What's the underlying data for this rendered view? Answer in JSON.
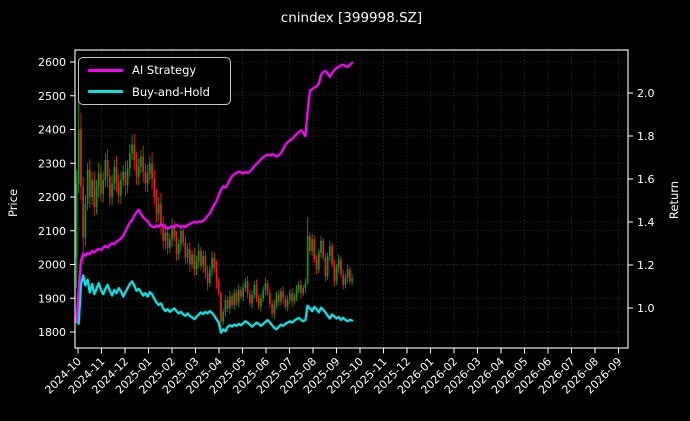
{
  "title": "cnindex [399998.SZ]",
  "left_axis_label": "Price",
  "right_axis_label": "Return",
  "legend": [
    {
      "label": "AI Strategy",
      "color": "#fb00fb"
    },
    {
      "label": "Buy-and-Hold",
      "color": "#00e6e6"
    }
  ],
  "chart_data": {
    "type": "candlestick+line",
    "title": "cnindex [399998.SZ]",
    "xlabel": "",
    "left_axis": {
      "label": "Price",
      "ticks": [
        1800,
        1900,
        2000,
        2100,
        2200,
        2300,
        2400,
        2500,
        2600
      ],
      "range": [
        1753,
        2635
      ],
      "grid": true
    },
    "right_axis": {
      "label": "Return",
      "ticks": [
        1.0,
        1.2,
        1.4,
        1.6,
        1.8,
        2.0
      ],
      "range": [
        0.81,
        2.2
      ],
      "grid": true
    },
    "x_tick_labels": [
      "2024-10",
      "2024-11",
      "2024-12",
      "2025-01",
      "2025-02",
      "2025-03",
      "2025-04",
      "2025-05",
      "2025-06",
      "2025-07",
      "2025-08",
      "2025-09",
      "2025-10",
      "2025-11",
      "2025-12",
      "2026-01",
      "2026-02",
      "2026-03",
      "2026-04",
      "2026-05",
      "2026-06",
      "2026-07",
      "2026-08",
      "2026-09"
    ],
    "x_tick_rotation_deg": 45,
    "data_start_label": "2024-10",
    "data_end_label": "2025-10",
    "legend_position": "upper left",
    "colors": {
      "up": "#00a020",
      "down": "#f01c1c",
      "ai_strategy": "#fb00fb",
      "buy_and_hold": "#00e6e6",
      "grid": "#3d3d3d",
      "background": "#000000",
      "foreground": "#ffffff"
    },
    "series": {
      "candles_ohlc": [
        [
          2020,
          2280,
          1930,
          2240
        ],
        [
          2240,
          2600,
          2210,
          2400
        ],
        [
          2400,
          2450,
          2190,
          2230
        ],
        [
          2230,
          2260,
          2000,
          2080
        ],
        [
          2080,
          2206,
          2054,
          2180
        ],
        [
          2180,
          2300,
          2160,
          2280
        ],
        [
          2280,
          2312,
          2168,
          2200
        ],
        [
          2200,
          2274,
          2176,
          2250
        ],
        [
          2250,
          2276,
          2144,
          2170
        ],
        [
          2170,
          2250,
          2150,
          2230
        ],
        [
          2230,
          2302,
          2198,
          2270
        ],
        [
          2270,
          2294,
          2186,
          2210
        ],
        [
          2210,
          2276,
          2184,
          2250
        ],
        [
          2250,
          2330,
          2230,
          2310
        ],
        [
          2310,
          2342,
          2228,
          2260
        ],
        [
          2260,
          2284,
          2176,
          2200
        ],
        [
          2200,
          2266,
          2174,
          2240
        ],
        [
          2240,
          2310,
          2220,
          2290
        ],
        [
          2290,
          2322,
          2213,
          2245
        ],
        [
          2245,
          2269,
          2181,
          2205
        ],
        [
          2205,
          2276,
          2179,
          2250
        ],
        [
          2250,
          2295,
          2230,
          2275
        ],
        [
          2275,
          2307,
          2203,
          2235
        ],
        [
          2235,
          2309,
          2211,
          2285
        ],
        [
          2285,
          2356,
          2259,
          2330
        ],
        [
          2330,
          2385,
          2310,
          2355
        ],
        [
          2355,
          2387,
          2278,
          2310
        ],
        [
          2310,
          2334,
          2236,
          2260
        ],
        [
          2260,
          2316,
          2234,
          2290
        ],
        [
          2290,
          2340,
          2270,
          2320
        ],
        [
          2320,
          2352,
          2243,
          2275
        ],
        [
          2275,
          2299,
          2216,
          2240
        ],
        [
          2240,
          2296,
          2214,
          2270
        ],
        [
          2270,
          2320,
          2250,
          2300
        ],
        [
          2300,
          2332,
          2223,
          2255
        ],
        [
          2255,
          2279,
          2176,
          2200
        ],
        [
          2200,
          2226,
          2124,
          2150
        ],
        [
          2150,
          2200,
          2130,
          2180
        ],
        [
          2180,
          2212,
          2088,
          2120
        ],
        [
          2120,
          2144,
          2046,
          2070
        ],
        [
          2070,
          2121,
          2044,
          2095
        ],
        [
          2095,
          2115,
          2030,
          2050
        ],
        [
          2050,
          2091,
          2034,
          2075
        ],
        [
          2075,
          2137,
          2053,
          2115
        ],
        [
          2115,
          2127,
          2068,
          2080
        ],
        [
          2080,
          2099,
          2011,
          2030
        ],
        [
          2030,
          2076,
          2014,
          2060
        ],
        [
          2060,
          2122,
          2038,
          2100
        ],
        [
          2100,
          2112,
          2053,
          2065
        ],
        [
          2065,
          2084,
          2001,
          2020
        ],
        [
          2020,
          2061,
          2004,
          2045
        ],
        [
          2045,
          2067,
          1978,
          2000
        ],
        [
          2000,
          2042,
          1988,
          2030
        ],
        [
          2030,
          2049,
          1966,
          1985
        ],
        [
          1985,
          2026,
          1969,
          2010
        ],
        [
          2010,
          2062,
          1988,
          2040
        ],
        [
          2040,
          2052,
          1983,
          1995
        ],
        [
          1995,
          2044,
          1976,
          2025
        ],
        [
          2025,
          2041,
          1959,
          1975
        ],
        [
          1975,
          1997,
          1923,
          1945
        ],
        [
          1945,
          1997,
          1933,
          1985
        ],
        [
          1985,
          2039,
          1966,
          2020
        ],
        [
          2020,
          2036,
          1974,
          1990
        ],
        [
          1990,
          2012,
          1928,
          1950
        ],
        [
          1950,
          1961,
          1904,
          1915
        ],
        [
          1915,
          1920,
          1795,
          1830
        ],
        [
          1830,
          1869,
          1821,
          1860
        ],
        [
          1860,
          1909,
          1846,
          1895
        ],
        [
          1895,
          1906,
          1859,
          1870
        ],
        [
          1870,
          1921,
          1854,
          1905
        ],
        [
          1905,
          1914,
          1871,
          1880
        ],
        [
          1880,
          1929,
          1866,
          1915
        ],
        [
          1915,
          1926,
          1879,
          1890
        ],
        [
          1890,
          1941,
          1874,
          1925
        ],
        [
          1925,
          1934,
          1896,
          1905
        ],
        [
          1905,
          1944,
          1891,
          1930
        ],
        [
          1930,
          1961,
          1919,
          1950
        ],
        [
          1950,
          1966,
          1899,
          1915
        ],
        [
          1915,
          1924,
          1876,
          1885
        ],
        [
          1885,
          1924,
          1871,
          1910
        ],
        [
          1910,
          1951,
          1899,
          1940
        ],
        [
          1940,
          1956,
          1889,
          1905
        ],
        [
          1905,
          1914,
          1866,
          1875
        ],
        [
          1875,
          1914,
          1861,
          1900
        ],
        [
          1900,
          1936,
          1889,
          1925
        ],
        [
          1925,
          1961,
          1909,
          1945
        ],
        [
          1945,
          1954,
          1906,
          1915
        ],
        [
          1915,
          1929,
          1871,
          1885
        ],
        [
          1885,
          1896,
          1844,
          1855
        ],
        [
          1855,
          1896,
          1839,
          1880
        ],
        [
          1880,
          1919,
          1871,
          1910
        ],
        [
          1910,
          1924,
          1876,
          1890
        ],
        [
          1890,
          1931,
          1879,
          1920
        ],
        [
          1920,
          1936,
          1884,
          1900
        ],
        [
          1900,
          1909,
          1866,
          1875
        ],
        [
          1875,
          1909,
          1861,
          1895
        ],
        [
          1895,
          1926,
          1884,
          1915
        ],
        [
          1915,
          1931,
          1874,
          1890
        ],
        [
          1890,
          1914,
          1881,
          1905
        ],
        [
          1905,
          1939,
          1891,
          1925
        ],
        [
          1925,
          1951,
          1914,
          1940
        ],
        [
          1940,
          1956,
          1899,
          1915
        ],
        [
          1915,
          1939,
          1906,
          1930
        ],
        [
          1930,
          1959,
          1916,
          1945
        ],
        [
          1945,
          2140,
          1940,
          2085
        ],
        [
          2085,
          2096,
          2029,
          2040
        ],
        [
          2040,
          2091,
          2024,
          2075
        ],
        [
          2075,
          2084,
          2006,
          2015
        ],
        [
          2015,
          2029,
          1971,
          1985
        ],
        [
          1985,
          2046,
          1974,
          2035
        ],
        [
          2035,
          2086,
          2019,
          2070
        ],
        [
          2070,
          2079,
          2011,
          2020
        ],
        [
          2020,
          2034,
          1951,
          1965
        ],
        [
          1965,
          2036,
          1954,
          2025
        ],
        [
          2025,
          2071,
          2009,
          2055
        ],
        [
          2055,
          2064,
          1991,
          2000
        ],
        [
          2000,
          2014,
          1936,
          1950
        ],
        [
          1950,
          2001,
          1939,
          1990
        ],
        [
          1990,
          2031,
          1974,
          2015
        ],
        [
          2015,
          2024,
          1961,
          1970
        ],
        [
          1970,
          1984,
          1926,
          1940
        ],
        [
          1940,
          1973,
          1929,
          1962
        ],
        [
          1962,
          2001,
          1946,
          1985
        ],
        [
          1985,
          1994,
          1941,
          1950
        ],
        [
          1950,
          1972,
          1938,
          1958
        ]
      ],
      "ai_strategy_price": [
        1830,
        1925,
        2010,
        2032,
        2026,
        2034,
        2030,
        2040,
        2036,
        2043,
        2046,
        2043,
        2050,
        2055,
        2050,
        2058,
        2063,
        2060,
        2068,
        2072,
        2078,
        2085,
        2098,
        2112,
        2124,
        2132,
        2145,
        2155,
        2162,
        2150,
        2140,
        2134,
        2128,
        2118,
        2112,
        2110,
        2116,
        2112,
        2120,
        2115,
        2110,
        2106,
        2110,
        2114,
        2110,
        2118,
        2114,
        2110,
        2115,
        2111,
        2117,
        2120,
        2124,
        2126,
        2124,
        2128,
        2126,
        2130,
        2136,
        2144,
        2152,
        2165,
        2178,
        2188,
        2205,
        2222,
        2232,
        2228,
        2238,
        2252,
        2262,
        2268,
        2272,
        2276,
        2273,
        2270,
        2274,
        2271,
        2276,
        2283,
        2292,
        2298,
        2304,
        2312,
        2318,
        2322,
        2326,
        2323,
        2327,
        2324,
        2320,
        2324,
        2330,
        2342,
        2355,
        2362,
        2368,
        2372,
        2380,
        2386,
        2392,
        2398,
        2390,
        2380,
        2455,
        2515,
        2520,
        2524,
        2528,
        2535,
        2562,
        2570,
        2574,
        2565,
        2556,
        2568,
        2576,
        2582,
        2586,
        2590,
        2592,
        2588,
        2585,
        2592,
        2598
      ],
      "buy_and_hold_price": [
        1832,
        1825,
        1940,
        1968,
        1938,
        1955,
        1917,
        1942,
        1912,
        1928,
        1945,
        1925,
        1912,
        1928,
        1940,
        1922,
        1908,
        1925,
        1915,
        1930,
        1920,
        1905,
        1918,
        1930,
        1942,
        1950,
        1938,
        1922,
        1928,
        1918,
        1908,
        1915,
        1905,
        1918,
        1912,
        1898,
        1888,
        1880,
        1885,
        1870,
        1862,
        1868,
        1860,
        1865,
        1870,
        1862,
        1855,
        1860,
        1852,
        1848,
        1855,
        1848,
        1843,
        1838,
        1845,
        1852,
        1858,
        1853,
        1860,
        1855,
        1862,
        1856,
        1848,
        1838,
        1828,
        1798,
        1808,
        1802,
        1815,
        1820,
        1816,
        1822,
        1818,
        1824,
        1820,
        1826,
        1832,
        1828,
        1822,
        1816,
        1822,
        1828,
        1824,
        1818,
        1824,
        1830,
        1835,
        1828,
        1820,
        1812,
        1808,
        1815,
        1822,
        1818,
        1824,
        1828,
        1832,
        1828,
        1834,
        1838,
        1842,
        1836,
        1832,
        1836,
        1878,
        1870,
        1862,
        1874,
        1868,
        1858,
        1872,
        1866,
        1858,
        1848,
        1840,
        1852,
        1846,
        1840,
        1844,
        1836,
        1842,
        1836,
        1832,
        1836,
        1834
      ]
    }
  }
}
